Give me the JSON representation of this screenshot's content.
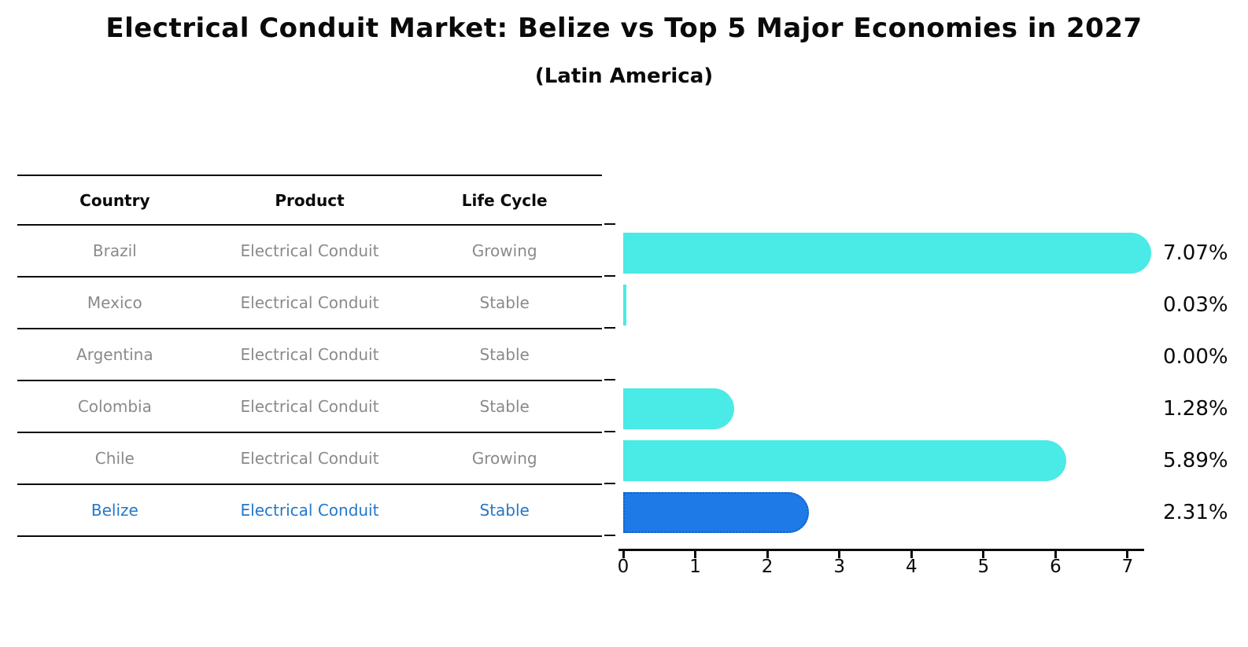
{
  "chart": {
    "title": "Electrical Conduit Market: Belize vs Top 5 Major Economies in 2027",
    "subtitle": "(Latin America)"
  },
  "table": {
    "columns": [
      "Country",
      "Product",
      "Life Cycle"
    ],
    "rows": [
      {
        "country": "Brazil",
        "product": "Electrical Conduit",
        "life_cycle": "Growing",
        "highlight": false
      },
      {
        "country": "Mexico",
        "product": "Electrical Conduit",
        "life_cycle": "Stable",
        "highlight": false
      },
      {
        "country": "Argentina",
        "product": "Electrical Conduit",
        "life_cycle": "Stable",
        "highlight": false
      },
      {
        "country": "Colombia",
        "product": "Electrical Conduit",
        "life_cycle": "Stable",
        "highlight": false
      },
      {
        "country": "Chile",
        "product": "Electrical Conduit",
        "life_cycle": "Growing",
        "highlight": false
      },
      {
        "country": "Belize",
        "product": "Electrical Conduit",
        "life_cycle": "Stable",
        "highlight": true
      }
    ]
  },
  "chart_data": {
    "type": "bar",
    "orientation": "horizontal",
    "title": "Electrical Conduit Market: Belize vs Top 5 Major Economies in 2027",
    "subtitle": "(Latin America)",
    "categories": [
      "Brazil",
      "Mexico",
      "Argentina",
      "Colombia",
      "Chile",
      "Belize"
    ],
    "values": [
      7.07,
      0.03,
      0.0,
      1.28,
      5.89,
      2.31
    ],
    "value_labels": [
      "7.07%",
      "0.03%",
      "0.00%",
      "1.28%",
      "5.89%",
      "2.31%"
    ],
    "x_ticks": [
      "0",
      "1",
      "2",
      "3",
      "4",
      "5",
      "6",
      "7"
    ],
    "xlim": [
      0,
      7.3
    ],
    "grid": false,
    "legend": "none",
    "bar_color": "#4aeae6",
    "highlight_index": 5,
    "highlight_color": "#1e7ae6",
    "highlight_border_color": "#1160c8",
    "row_text_color": "#8a8a8a",
    "highlight_text_color": "#2478c8",
    "axis_color": "#0a0a0a"
  }
}
